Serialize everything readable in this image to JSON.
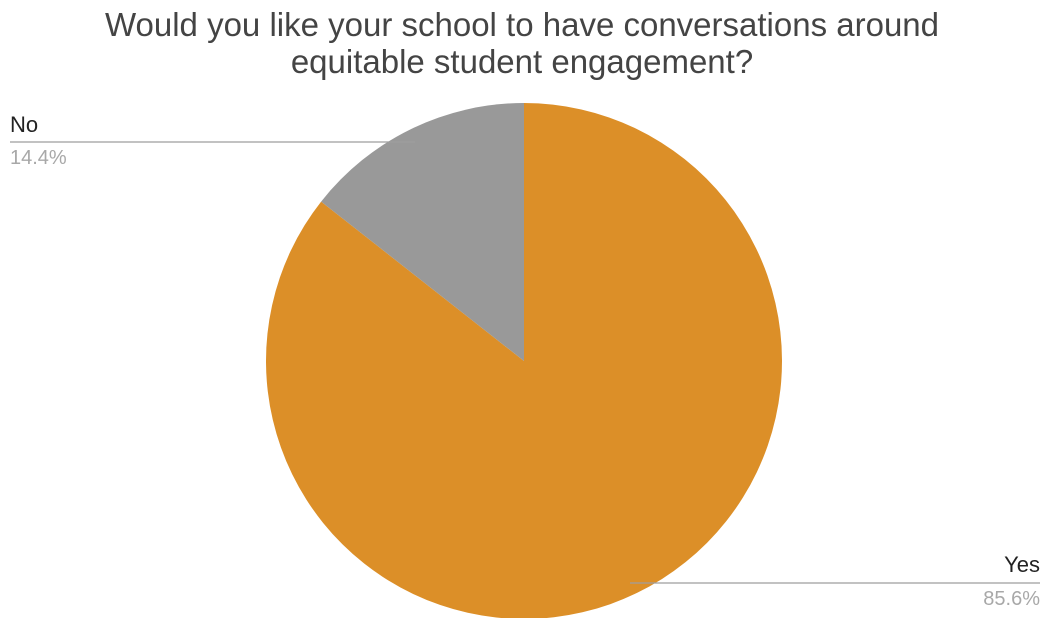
{
  "chart_data": {
    "type": "pie",
    "title_lines": [
      "Would you like your school to have conversations around",
      "equitable student engagement?"
    ],
    "slices": [
      {
        "label": "Yes",
        "value": 85.6,
        "value_label": "85.6%",
        "color": "#DC8F28"
      },
      {
        "label": "No",
        "value": 14.4,
        "value_label": "14.4%",
        "color": "#999999"
      }
    ],
    "start_angle_deg": 0,
    "direction": "clockwise",
    "legend": "none",
    "labels": "outside-with-leader-lines"
  }
}
